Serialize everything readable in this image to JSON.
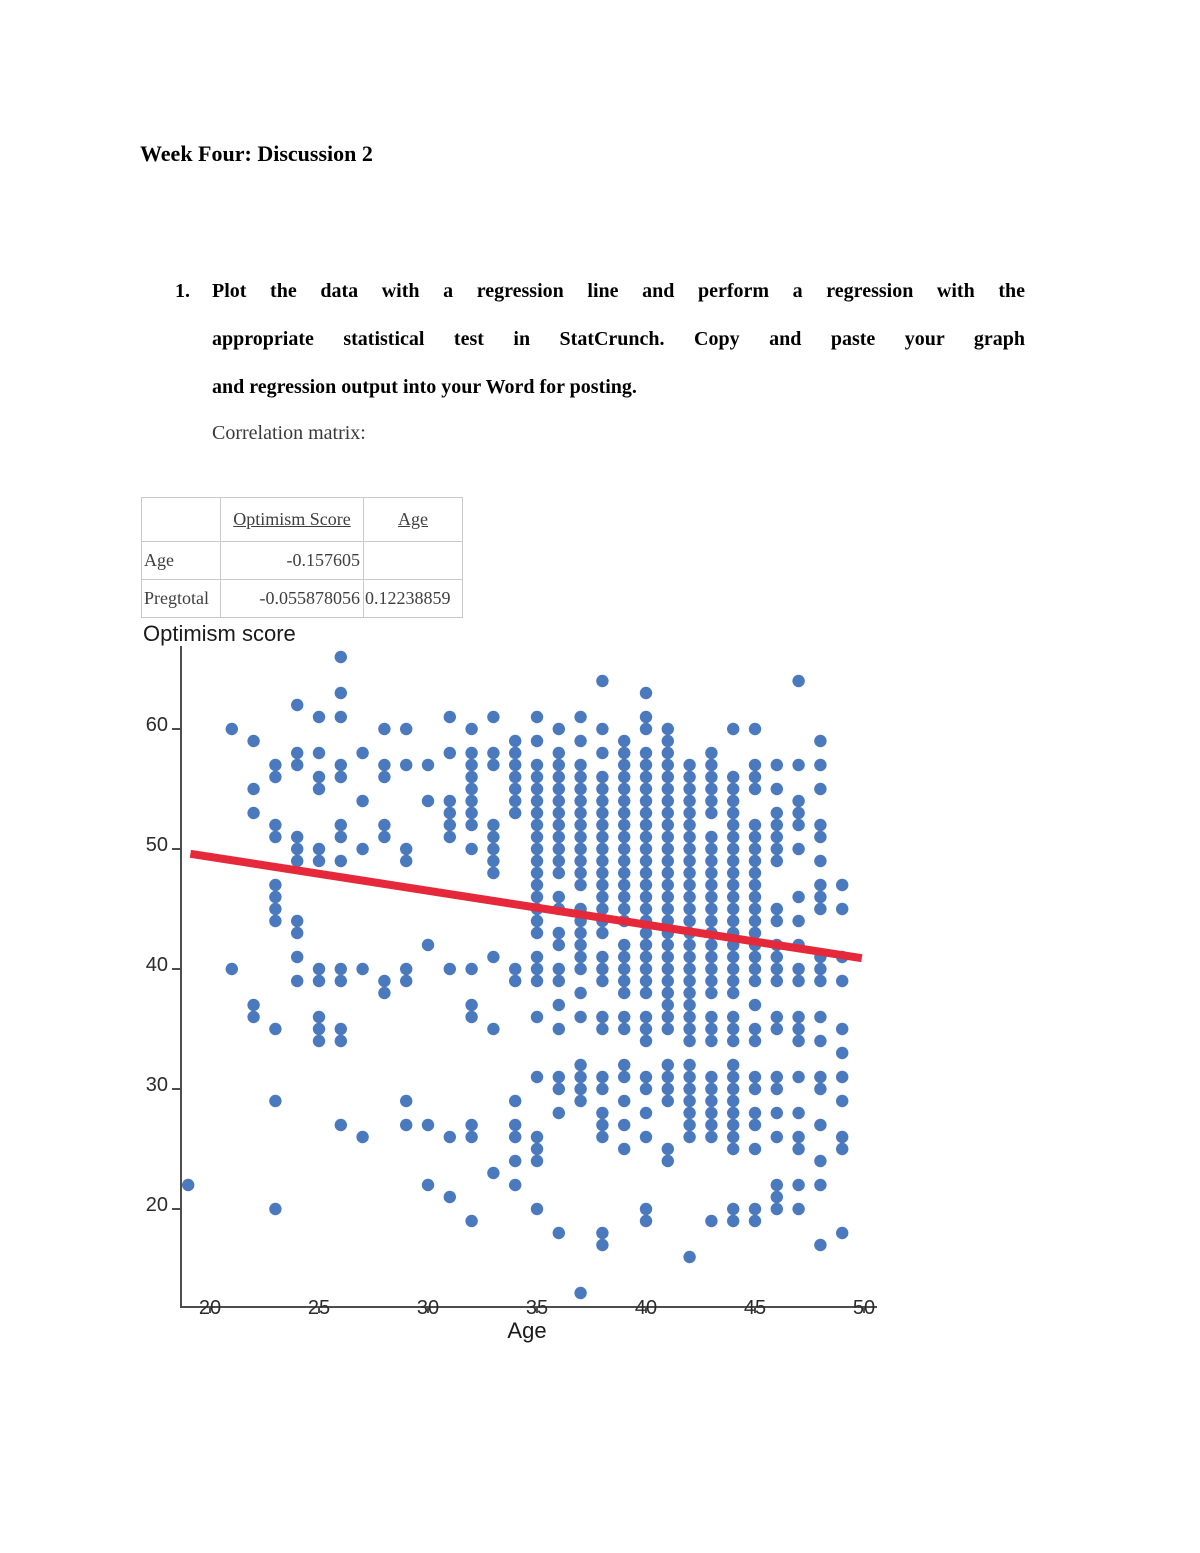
{
  "document": {
    "title": "Week Four: Discussion 2",
    "list_number": "1.",
    "paragraph_lines": [
      "Plot the data with a regression line and perform a regression with the",
      "appropriate statistical test in StatCrunch. Copy and paste your graph",
      "and regression output into your Word for posting."
    ],
    "subtext": "Correlation matrix:"
  },
  "table": {
    "headers": [
      "",
      "Optimism Score",
      "Age"
    ],
    "rows": [
      [
        "Age",
        "-0.157605",
        ""
      ],
      [
        "Pregtotal",
        "-0.055878056",
        "0.12238859"
      ]
    ]
  },
  "chart_data": {
    "type": "scatter",
    "title": "Optimism score",
    "xlabel": "Age",
    "ylabel": "Optimism score",
    "xlim": [
      18.5,
      51.5
    ],
    "ylim": [
      11.5,
      67
    ],
    "x_ticks": [
      20,
      25,
      30,
      35,
      40,
      45,
      50
    ],
    "y_ticks": [
      60,
      50,
      40,
      30,
      20
    ],
    "grid": false,
    "legend": "none",
    "point_color": "#4a7abd",
    "line_color": "#e5293a",
    "axis_color": "#4d4d4d",
    "regression_line": {
      "x1": 19.1,
      "y1": 49.6,
      "x2": 49.9,
      "y2": 40.9
    },
    "columns": [
      {
        "age": 19,
        "scores": [
          22
        ]
      },
      {
        "age": 21,
        "scores": [
          60,
          40
        ]
      },
      {
        "age": 22,
        "scores": [
          59,
          55,
          53,
          37,
          36
        ]
      },
      {
        "age": 23,
        "scores": [
          57,
          56,
          52,
          51,
          47,
          46,
          45,
          44,
          35,
          29,
          20
        ]
      },
      {
        "age": 24,
        "scores": [
          62,
          58,
          57,
          51,
          50,
          49,
          44,
          43,
          41,
          39
        ]
      },
      {
        "age": 25,
        "scores": [
          61,
          58,
          56,
          55,
          50,
          49,
          40,
          39,
          36,
          35,
          34
        ]
      },
      {
        "age": 26,
        "scores": [
          66,
          63,
          61,
          57,
          56,
          52,
          51,
          49,
          40,
          39,
          35,
          34,
          27
        ]
      },
      {
        "age": 27,
        "scores": [
          58,
          54,
          50,
          40,
          26
        ]
      },
      {
        "age": 28,
        "scores": [
          60,
          57,
          56,
          52,
          51,
          39,
          38
        ]
      },
      {
        "age": 29,
        "scores": [
          60,
          57,
          50,
          49,
          40,
          39,
          29,
          27
        ]
      },
      {
        "age": 30,
        "scores": [
          57,
          54,
          42,
          27,
          22
        ]
      },
      {
        "age": 31,
        "scores": [
          61,
          58,
          54,
          53,
          52,
          51,
          40,
          26,
          21
        ]
      },
      {
        "age": 32,
        "scores": [
          60,
          58,
          57,
          56,
          55,
          54,
          53,
          52,
          50,
          40,
          37,
          36,
          27,
          26,
          19
        ]
      },
      {
        "age": 33,
        "scores": [
          61,
          58,
          57,
          52,
          51,
          50,
          49,
          48,
          41,
          35,
          23
        ]
      },
      {
        "age": 34,
        "scores": [
          59,
          58,
          57,
          56,
          55,
          54,
          53,
          40,
          39,
          29,
          27,
          26,
          24,
          22
        ]
      },
      {
        "age": 35,
        "scores": [
          61,
          59,
          57,
          56,
          55,
          54,
          53,
          52,
          51,
          50,
          49,
          48,
          47,
          46,
          45,
          44,
          43,
          41,
          40,
          39,
          36,
          31,
          26,
          25,
          24,
          20
        ]
      },
      {
        "age": 36,
        "scores": [
          60,
          58,
          57,
          56,
          55,
          54,
          53,
          52,
          51,
          50,
          49,
          48,
          46,
          45,
          43,
          42,
          40,
          39,
          37,
          35,
          31,
          30,
          28,
          18
        ]
      },
      {
        "age": 37,
        "scores": [
          61,
          59,
          57,
          56,
          55,
          54,
          53,
          52,
          51,
          50,
          49,
          48,
          47,
          45,
          44,
          43,
          42,
          41,
          40,
          38,
          36,
          32,
          31,
          30,
          29,
          13
        ]
      },
      {
        "age": 38,
        "scores": [
          64,
          60,
          58,
          56,
          55,
          54,
          53,
          52,
          51,
          50,
          49,
          48,
          47,
          46,
          45,
          44,
          43,
          41,
          40,
          39,
          36,
          35,
          31,
          30,
          28,
          27,
          26,
          18,
          17
        ]
      },
      {
        "age": 39,
        "scores": [
          59,
          58,
          57,
          56,
          55,
          54,
          53,
          52,
          51,
          50,
          49,
          48,
          47,
          46,
          45,
          44,
          42,
          41,
          40,
          39,
          38,
          36,
          35,
          32,
          31,
          29,
          27,
          25
        ]
      },
      {
        "age": 40,
        "scores": [
          63,
          61,
          60,
          58,
          57,
          56,
          55,
          54,
          53,
          52,
          51,
          50,
          49,
          48,
          47,
          46,
          45,
          44,
          43,
          42,
          41,
          40,
          39,
          38,
          36,
          35,
          34,
          31,
          30,
          28,
          26,
          20,
          19
        ]
      },
      {
        "age": 41,
        "scores": [
          60,
          59,
          58,
          57,
          56,
          55,
          54,
          53,
          52,
          51,
          50,
          49,
          48,
          47,
          46,
          45,
          44,
          43,
          42,
          41,
          40,
          39,
          38,
          37,
          36,
          35,
          32,
          31,
          30,
          29,
          25,
          24
        ]
      },
      {
        "age": 42,
        "scores": [
          57,
          56,
          55,
          54,
          53,
          52,
          51,
          50,
          49,
          48,
          47,
          46,
          45,
          44,
          43,
          42,
          41,
          40,
          39,
          38,
          37,
          36,
          35,
          34,
          32,
          31,
          30,
          29,
          28,
          27,
          26,
          16
        ]
      },
      {
        "age": 43,
        "scores": [
          58,
          57,
          56,
          55,
          54,
          53,
          51,
          50,
          49,
          48,
          47,
          46,
          45,
          44,
          43,
          42,
          41,
          40,
          39,
          38,
          36,
          35,
          34,
          31,
          30,
          29,
          28,
          27,
          26,
          19
        ]
      },
      {
        "age": 44,
        "scores": [
          60,
          56,
          55,
          54,
          53,
          52,
          51,
          50,
          49,
          48,
          47,
          46,
          45,
          44,
          43,
          42,
          41,
          40,
          39,
          38,
          36,
          35,
          34,
          32,
          31,
          30,
          29,
          28,
          27,
          26,
          25,
          20,
          19
        ]
      },
      {
        "age": 45,
        "scores": [
          60,
          57,
          56,
          55,
          52,
          51,
          50,
          49,
          48,
          47,
          46,
          45,
          44,
          43,
          42,
          41,
          40,
          39,
          37,
          35,
          34,
          31,
          30,
          28,
          27,
          25,
          20,
          19
        ]
      },
      {
        "age": 46,
        "scores": [
          57,
          55,
          53,
          52,
          51,
          50,
          49,
          45,
          44,
          42,
          41,
          40,
          39,
          36,
          35,
          31,
          30,
          28,
          26,
          22,
          21,
          20
        ]
      },
      {
        "age": 47,
        "scores": [
          64,
          57,
          54,
          53,
          52,
          50,
          46,
          44,
          42,
          40,
          39,
          36,
          35,
          34,
          31,
          28,
          26,
          25,
          22,
          20
        ]
      },
      {
        "age": 48,
        "scores": [
          59,
          57,
          55,
          52,
          51,
          49,
          47,
          46,
          45,
          41,
          40,
          39,
          36,
          34,
          31,
          30,
          27,
          24,
          22,
          17
        ]
      },
      {
        "age": 49,
        "scores": [
          47,
          45,
          41,
          39,
          35,
          33,
          31,
          29,
          26,
          25,
          18
        ]
      }
    ]
  }
}
